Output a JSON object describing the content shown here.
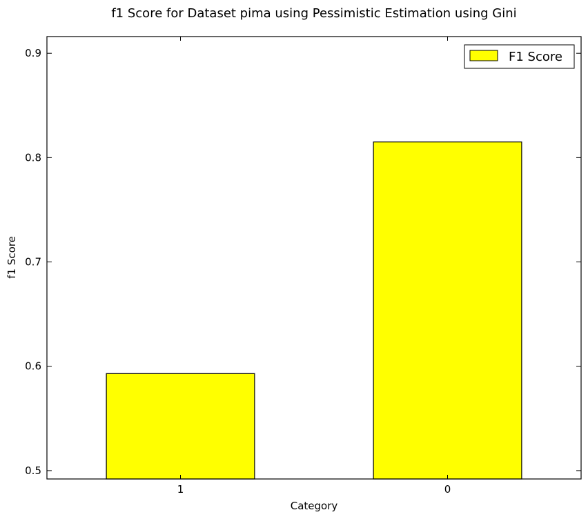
{
  "chart_data": {
    "type": "bar",
    "title": "f1 Score for Dataset pima using Pessimistic Estimation using Gini",
    "xlabel": "Category",
    "ylabel": "f1 Score",
    "categories": [
      "1",
      "0"
    ],
    "series": [
      {
        "name": "F1 Score",
        "values": [
          0.593,
          0.815
        ],
        "color": "#ffff00"
      }
    ],
    "ylim": [
      0.492,
      0.916
    ],
    "yticks": [
      0.5,
      0.6,
      0.7,
      0.8,
      0.9
    ],
    "ytick_labels": [
      "0.5",
      "0.6",
      "0.7",
      "0.8",
      "0.9"
    ],
    "legend_position": "top-right",
    "grid": false
  }
}
